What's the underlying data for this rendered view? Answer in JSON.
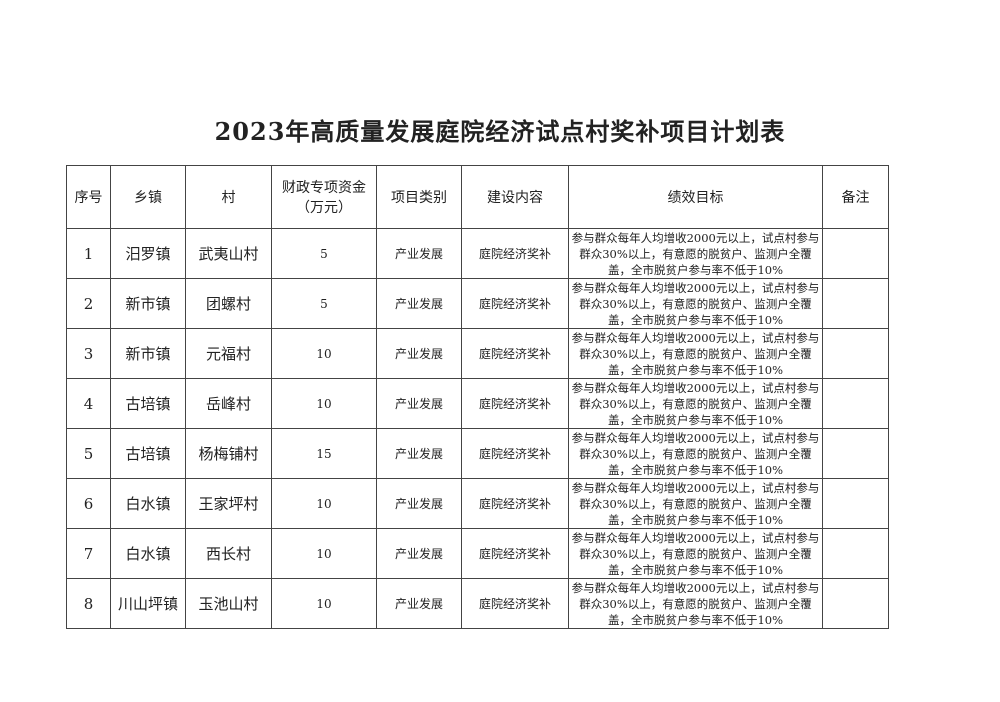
{
  "title": "2023年高质量发展庭院经济试点村奖补项目计划表",
  "table": {
    "headers": [
      "序号",
      "乡镇",
      "村",
      "财政专项资金（万元）",
      "项目类别",
      "建设内容",
      "绩效目标",
      "备注"
    ],
    "header_fund_line1": "财政专项资金",
    "header_fund_line2": "（万元）",
    "rows": [
      {
        "no": "1",
        "town": "汨罗镇",
        "village": "武夷山村",
        "fund": "5",
        "category": "产业发展",
        "content": "庭院经济奖补",
        "goal": "参与群众每年人均增收2000元以上，试点村参与群众30%以上，有意愿的脱贫户、监测户全覆盖，全市脱贫户参与率不低于10%",
        "note": ""
      },
      {
        "no": "2",
        "town": "新市镇",
        "village": "团螺村",
        "fund": "5",
        "category": "产业发展",
        "content": "庭院经济奖补",
        "goal": "参与群众每年人均增收2000元以上，试点村参与群众30%以上，有意愿的脱贫户、监测户全覆盖，全市脱贫户参与率不低于10%",
        "note": ""
      },
      {
        "no": "3",
        "town": "新市镇",
        "village": "元福村",
        "fund": "10",
        "category": "产业发展",
        "content": "庭院经济奖补",
        "goal": "参与群众每年人均增收2000元以上，试点村参与群众30%以上，有意愿的脱贫户、监测户全覆盖，全市脱贫户参与率不低于10%",
        "note": ""
      },
      {
        "no": "4",
        "town": "古培镇",
        "village": "岳峰村",
        "fund": "10",
        "category": "产业发展",
        "content": "庭院经济奖补",
        "goal": "参与群众每年人均增收2000元以上，试点村参与群众30%以上，有意愿的脱贫户、监测户全覆盖，全市脱贫户参与率不低于10%",
        "note": ""
      },
      {
        "no": "5",
        "town": "古培镇",
        "village": "杨梅铺村",
        "fund": "15",
        "category": "产业发展",
        "content": "庭院经济奖补",
        "goal": "参与群众每年人均增收2000元以上，试点村参与群众30%以上，有意愿的脱贫户、监测户全覆盖，全市脱贫户参与率不低于10%",
        "note": ""
      },
      {
        "no": "6",
        "town": "白水镇",
        "village": "王家坪村",
        "fund": "10",
        "category": "产业发展",
        "content": "庭院经济奖补",
        "goal": "参与群众每年人均增收2000元以上，试点村参与群众30%以上，有意愿的脱贫户、监测户全覆盖，全市脱贫户参与率不低于10%",
        "note": ""
      },
      {
        "no": "7",
        "town": "白水镇",
        "village": "西长村",
        "fund": "10",
        "category": "产业发展",
        "content": "庭院经济奖补",
        "goal": "参与群众每年人均增收2000元以上，试点村参与群众30%以上，有意愿的脱贫户、监测户全覆盖，全市脱贫户参与率不低于10%",
        "note": ""
      },
      {
        "no": "8",
        "town": "川山坪镇",
        "village": "玉池山村",
        "fund": "10",
        "category": "产业发展",
        "content": "庭院经济奖补",
        "goal": "参与群众每年人均增收2000元以上，试点村参与群众30%以上，有意愿的脱贫户、监测户全覆盖，全市脱贫户参与率不低于10%",
        "note": ""
      }
    ]
  }
}
